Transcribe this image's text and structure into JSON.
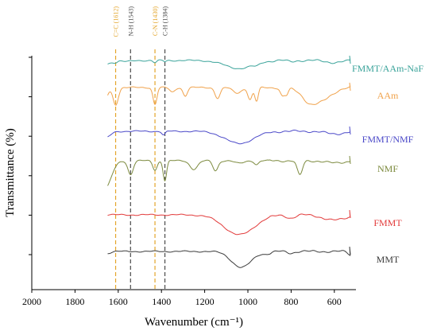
{
  "chart_data": {
    "type": "line",
    "xlabel": "Wavenumber (cm⁻¹)",
    "ylabel": "Transmittance (%)",
    "xlim": [
      2000,
      500
    ],
    "x_reversed": true,
    "x_ticks": [
      2000,
      1800,
      1600,
      1400,
      1200,
      1000,
      800,
      600
    ],
    "y_ticks_unlabeled": 6,
    "reference_lines": [
      {
        "label": "C=C (1612)",
        "x": 1612,
        "color": "#e3a52a"
      },
      {
        "label": "N-H (1543)",
        "x": 1543,
        "color": "#4a4a4a"
      },
      {
        "label": "C-N (1430)",
        "x": 1430,
        "color": "#e3a52a"
      },
      {
        "label": "C-H (1384)",
        "x": 1384,
        "color": "#4a4a4a"
      }
    ],
    "series": [
      {
        "name": "FMMT/AAm-NaF",
        "color": "#3aa39a",
        "baseline": 0.07,
        "features": [
          [
            1660,
            24,
            0.1
          ],
          [
            1612,
            10,
            0.04
          ],
          [
            1560,
            20,
            0.03
          ],
          [
            1430,
            8,
            0.06
          ],
          [
            1384,
            6,
            0.03
          ],
          [
            1040,
            65,
            0.21
          ],
          [
            960,
            12,
            0.05
          ],
          [
            800,
            15,
            0.03
          ],
          [
            600,
            40,
            0.05
          ]
        ]
      },
      {
        "name": "AAm",
        "color": "#f0a24b",
        "baseline": 0.06,
        "features": [
          [
            1668,
            16,
            0.4
          ],
          [
            1612,
            12,
            0.45
          ],
          [
            1430,
            9,
            0.44
          ],
          [
            1350,
            12,
            0.12
          ],
          [
            1290,
            10,
            0.22
          ],
          [
            1140,
            12,
            0.28
          ],
          [
            1050,
            20,
            0.14
          ],
          [
            990,
            10,
            0.32
          ],
          [
            960,
            8,
            0.36
          ],
          [
            840,
            10,
            0.22
          ],
          [
            820,
            8,
            0.16
          ],
          [
            680,
            55,
            0.4
          ],
          [
            720,
            25,
            0.1
          ]
        ]
      },
      {
        "name": "FMMT/NMF",
        "color": "#4a48c8",
        "baseline": 0.07,
        "features": [
          [
            1660,
            22,
            0.18
          ],
          [
            1390,
            8,
            0.1
          ],
          [
            1040,
            65,
            0.32
          ],
          [
            600,
            40,
            0.07
          ]
        ]
      },
      {
        "name": "NMF",
        "color": "#7c8a3e",
        "baseline": 0.04,
        "features": [
          [
            1660,
            28,
            0.72
          ],
          [
            1543,
            12,
            0.36
          ],
          [
            1430,
            10,
            0.24
          ],
          [
            1384,
            8,
            0.52
          ],
          [
            1250,
            18,
            0.22
          ],
          [
            1150,
            12,
            0.26
          ],
          [
            1040,
            20,
            0.07
          ],
          [
            960,
            10,
            0.1
          ],
          [
            760,
            12,
            0.38
          ],
          [
            600,
            40,
            0.06
          ]
        ]
      },
      {
        "name": "FMMT",
        "color": "#e23a3a",
        "baseline": 0.05,
        "features": [
          [
            1040,
            70,
            0.52
          ],
          [
            800,
            20,
            0.08
          ],
          [
            600,
            50,
            0.14
          ]
        ]
      },
      {
        "name": "MMT",
        "color": "#3a3a3a",
        "baseline": 0.05,
        "features": [
          [
            1660,
            20,
            0.06
          ],
          [
            1030,
            45,
            0.42
          ],
          [
            910,
            20,
            0.06
          ],
          [
            800,
            15,
            0.04
          ],
          [
            520,
            15,
            0.1
          ]
        ]
      }
    ]
  }
}
